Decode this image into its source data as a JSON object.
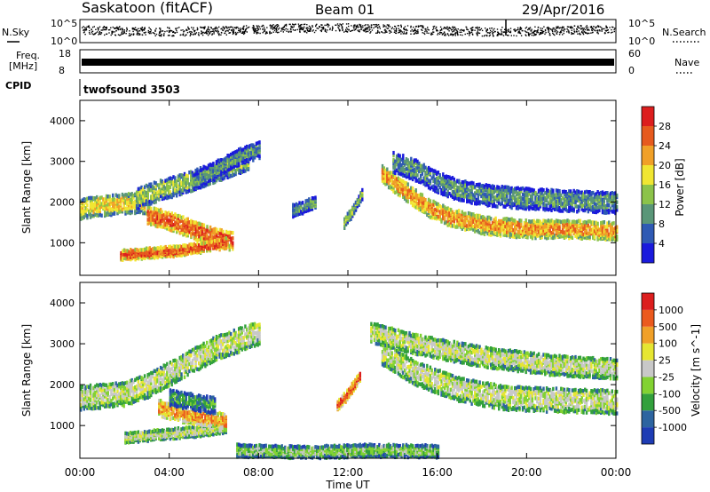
{
  "header": {
    "station": "Saskatoon (fitACF)",
    "beam": "Beam 01",
    "date": "29/Apr/2016"
  },
  "panels": {
    "nsky": {
      "label": "N.Sky",
      "ticks_left": [
        "10^5",
        "10^0"
      ],
      "ticks_right": [
        "10^5",
        "10^0"
      ],
      "right_label": "N.Search"
    },
    "freq": {
      "label_line1": "Freq.",
      "label_line2": "[MHz]",
      "ticks_left": [
        "18",
        "8"
      ],
      "ticks_right": [
        "60",
        "0"
      ],
      "right_label": "Nave"
    },
    "cpid": {
      "label": "CPID",
      "text": "twofsound 3503"
    }
  },
  "chart_data": [
    {
      "type": "heatmap",
      "title": "",
      "xlabel": "Time UT",
      "ylabel": "Slant Range [km]",
      "x_ticks": [
        "00:00",
        "04:00",
        "08:00",
        "12:00",
        "16:00",
        "20:00",
        "00:00"
      ],
      "xlim_hours": [
        0,
        24
      ],
      "y_ticks": [
        "1000",
        "2000",
        "3000",
        "4000"
      ],
      "ylim": [
        200,
        4500
      ],
      "colorbar": {
        "label": "Power [dB]",
        "ticks": [
          "4",
          "8",
          "12",
          "16",
          "20",
          "24",
          "28"
        ],
        "colors": [
          "#1a1adc",
          "#2f5ab4",
          "#5a9678",
          "#8cc34a",
          "#f0e632",
          "#f0a028",
          "#e65a1e",
          "#dc1e1e"
        ]
      },
      "bands": [
        {
          "t": [
            0,
            0.5,
            1.5,
            2.5,
            3.0
          ],
          "r": [
            1850,
            1900,
            1950,
            2000,
            1980
          ],
          "w": 250,
          "level": 4
        },
        {
          "t": [
            3.0,
            4.0,
            5.0,
            6.0,
            6.8
          ],
          "r": [
            1700,
            1550,
            1350,
            1150,
            1050
          ],
          "w": 220,
          "level": 6
        },
        {
          "t": [
            1.8,
            3.0,
            4.2,
            5.5,
            6.5
          ],
          "r": [
            700,
            750,
            800,
            900,
            1000
          ],
          "w": 120,
          "level": 6
        },
        {
          "t": [
            2.5,
            3.5,
            4.5,
            5.5,
            6.5,
            7.5
          ],
          "r": [
            2100,
            2300,
            2450,
            2650,
            2850,
            3050
          ],
          "w": 250,
          "level": 3
        },
        {
          "t": [
            5.0,
            6.0,
            7.0,
            8.0
          ],
          "r": [
            2500,
            2800,
            3100,
            3300
          ],
          "w": 200,
          "level": 2
        },
        {
          "t": [
            9.5,
            10.0,
            10.5
          ],
          "r": [
            1800,
            1900,
            2000
          ],
          "w": 150,
          "level": 2
        },
        {
          "t": [
            11.8,
            12.2,
            12.6
          ],
          "r": [
            1500,
            1800,
            2200
          ],
          "w": 120,
          "level": 3
        },
        {
          "t": [
            13.5,
            14.5,
            15.5,
            16.5,
            18.0,
            20.0,
            22.0,
            24.0
          ],
          "r": [
            2700,
            2300,
            1900,
            1650,
            1450,
            1350,
            1350,
            1300
          ],
          "w": 220,
          "level": 5
        },
        {
          "t": [
            14.0,
            15.0,
            16.0,
            17.0,
            18.0,
            20.0,
            22.0,
            24.0
          ],
          "r": [
            3000,
            2800,
            2500,
            2300,
            2200,
            2100,
            2050,
            2000
          ],
          "w": 260,
          "level": 2
        }
      ]
    },
    {
      "type": "heatmap",
      "title": "",
      "xlabel": "Time UT",
      "ylabel": "Slant Range [km]",
      "x_ticks": [
        "00:00",
        "04:00",
        "08:00",
        "12:00",
        "16:00",
        "20:00",
        "00:00"
      ],
      "xlim_hours": [
        0,
        24
      ],
      "y_ticks": [
        "1000",
        "2000",
        "3000",
        "4000"
      ],
      "ylim": [
        200,
        4500
      ],
      "colorbar": {
        "label": "Velocity [m s^-1]",
        "ticks": [
          "1000",
          "500",
          "100",
          "25",
          "-25",
          "-100",
          "-500",
          "-1000"
        ],
        "colors": [
          "#1e3cb4",
          "#2d64a0",
          "#32a03c",
          "#82d232",
          "#c8c8c8",
          "#e6e632",
          "#f0a028",
          "#eb5a1e",
          "#dc1e1e"
        ]
      },
      "bands": [
        {
          "t": [
            0,
            1.0,
            2.0,
            3.0,
            4.0,
            5.0,
            6.0,
            7.0,
            8.0
          ],
          "r": [
            1700,
            1750,
            1800,
            2000,
            2300,
            2600,
            2900,
            3100,
            3300
          ],
          "w": 300,
          "level": 4
        },
        {
          "t": [
            2.0,
            3.5,
            5.0,
            6.5
          ],
          "r": [
            700,
            780,
            850,
            950
          ],
          "w": 120,
          "level": 4
        },
        {
          "t": [
            3.5,
            4.5,
            5.5,
            6.5
          ],
          "r": [
            1450,
            1300,
            1200,
            1100
          ],
          "w": 200,
          "level": 6
        },
        {
          "t": [
            4.0,
            5.0,
            6.0
          ],
          "r": [
            1700,
            1600,
            1500
          ],
          "w": 200,
          "level": 2
        },
        {
          "t": [
            11.5,
            12.0,
            12.5
          ],
          "r": [
            1500,
            1800,
            2200
          ],
          "w": 120,
          "level": 7
        },
        {
          "t": [
            13.5,
            15.0,
            17.0,
            19.0,
            21.0,
            24.0
          ],
          "r": [
            2800,
            2300,
            1900,
            1700,
            1650,
            1600
          ],
          "w": 300,
          "level": 4
        },
        {
          "t": [
            13.0,
            15.0,
            18.0,
            21.0,
            24.0
          ],
          "r": [
            3300,
            3000,
            2700,
            2500,
            2400
          ],
          "w": 250,
          "level": 4
        },
        {
          "t": [
            7.0,
            10.0,
            13.0,
            16.0
          ],
          "r": [
            400,
            350,
            400,
            380
          ],
          "w": 150,
          "level": 3
        }
      ]
    }
  ]
}
